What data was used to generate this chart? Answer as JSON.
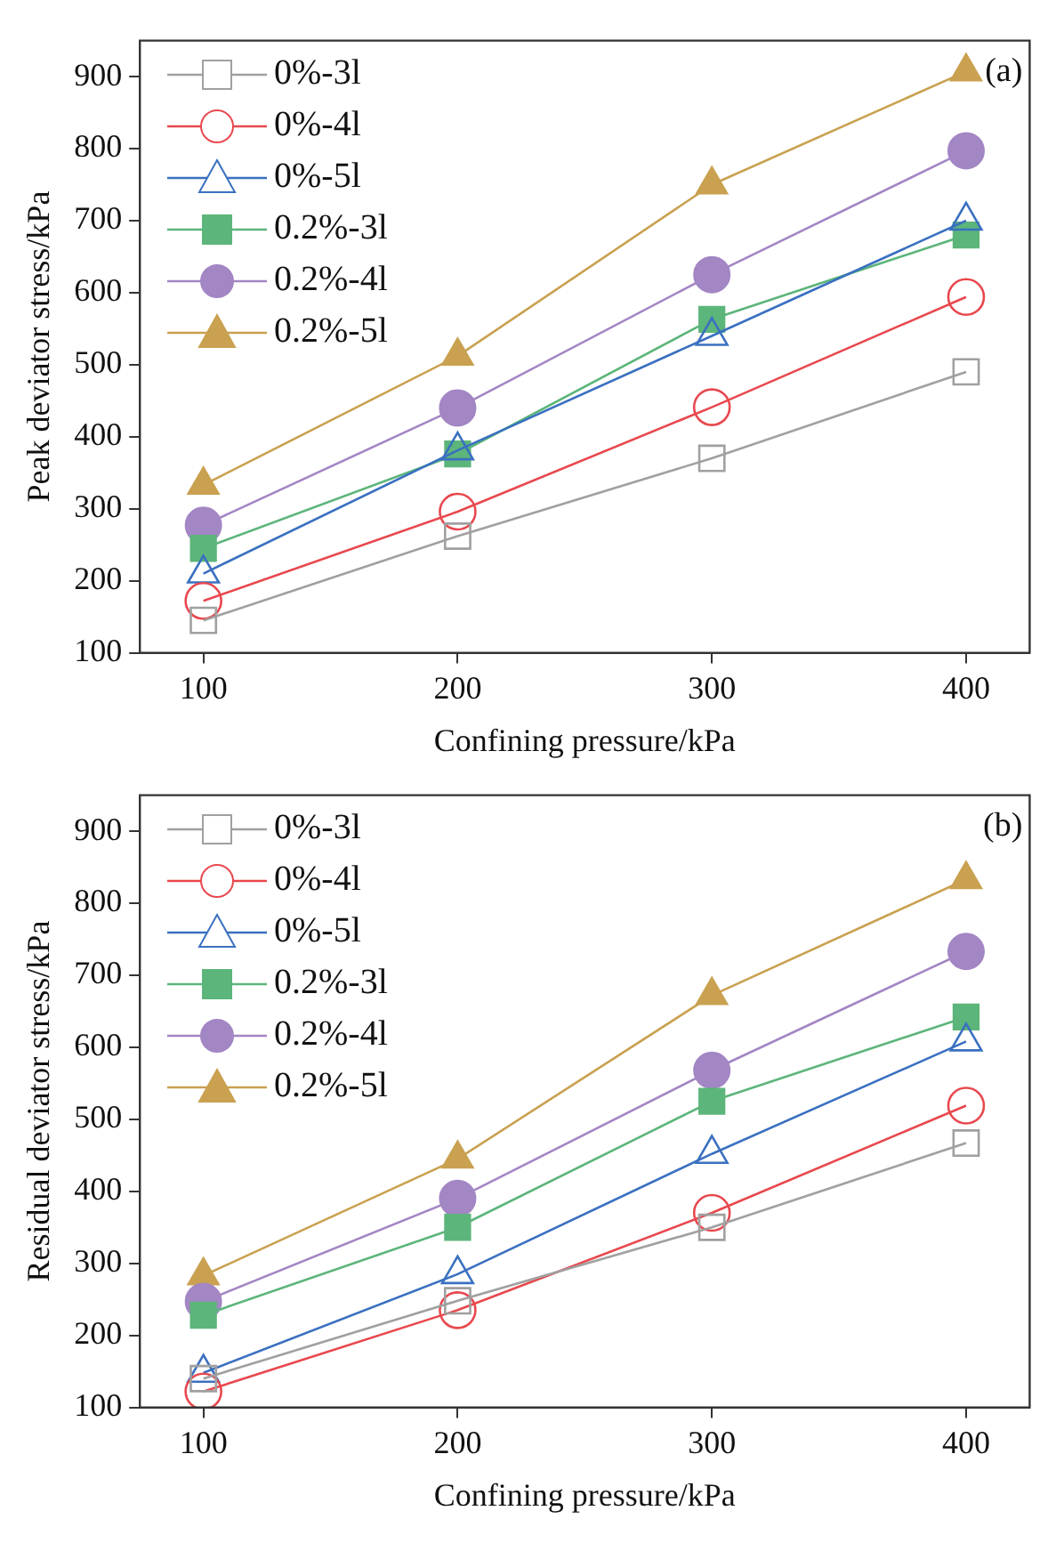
{
  "chart_data": [
    {
      "type": "line",
      "xlabel": "Confining pressure/kPa",
      "ylabel": "Peak deviator stress/kPa",
      "x": [
        100,
        200,
        300,
        400
      ],
      "xlim": [
        75,
        425
      ],
      "xticks": [
        100,
        200,
        300,
        400
      ],
      "ylim": [
        100,
        950
      ],
      "yticks": [
        100,
        200,
        300,
        400,
        500,
        600,
        700,
        800,
        900
      ],
      "grid": false,
      "legend": "top left",
      "annotations": [
        "(a)"
      ],
      "series": [
        {
          "name": "0%-3l",
          "color": "#a0a0a0",
          "marker": "square",
          "values": [
            145,
            262,
            370,
            490
          ]
        },
        {
          "name": "0%-4l",
          "color": "#e8484e",
          "marker": "circle",
          "values": [
            172,
            296,
            441,
            594
          ]
        },
        {
          "name": "0%-5l",
          "color": "#3a70c0",
          "marker": "triangle",
          "values": [
            210,
            381,
            540,
            700
          ]
        },
        {
          "name": "0.2%-3l",
          "color": "#5cb57a",
          "marker": "square",
          "values": [
            245,
            376,
            563,
            680
          ]
        },
        {
          "name": "0.2%-4l",
          "color": "#a386c4",
          "marker": "circle",
          "values": [
            277,
            440,
            625,
            797
          ]
        },
        {
          "name": "0.2%-5l",
          "color": "#c9a150",
          "marker": "triangle",
          "values": [
            333,
            512,
            750,
            907
          ]
        }
      ]
    },
    {
      "type": "line",
      "xlabel": "Confining pressure/kPa",
      "ylabel": "Residual deviator stress/kPa",
      "x": [
        100,
        200,
        300,
        400
      ],
      "xlim": [
        75,
        425
      ],
      "xticks": [
        100,
        200,
        300,
        400
      ],
      "ylim": [
        100,
        950
      ],
      "yticks": [
        100,
        200,
        300,
        400,
        500,
        600,
        700,
        800,
        900
      ],
      "grid": false,
      "legend": "top left",
      "annotations": [
        "(b)"
      ],
      "series": [
        {
          "name": "0%-3l",
          "color": "#a0a0a0",
          "marker": "square",
          "values": [
            140,
            248,
            350,
            467
          ]
        },
        {
          "name": "0%-4l",
          "color": "#e8484e",
          "marker": "circle",
          "values": [
            122,
            235,
            370,
            519
          ]
        },
        {
          "name": "0%-5l",
          "color": "#3a70c0",
          "marker": "triangle",
          "values": [
            148,
            285,
            452,
            608
          ]
        },
        {
          "name": "0.2%-3l",
          "color": "#5cb57a",
          "marker": "square",
          "values": [
            228,
            350,
            525,
            642
          ]
        },
        {
          "name": "0.2%-4l",
          "color": "#a386c4",
          "marker": "circle",
          "values": [
            247,
            390,
            568,
            733
          ]
        },
        {
          "name": "0.2%-5l",
          "color": "#c9a150",
          "marker": "triangle",
          "values": [
            283,
            445,
            672,
            833
          ]
        }
      ]
    }
  ]
}
